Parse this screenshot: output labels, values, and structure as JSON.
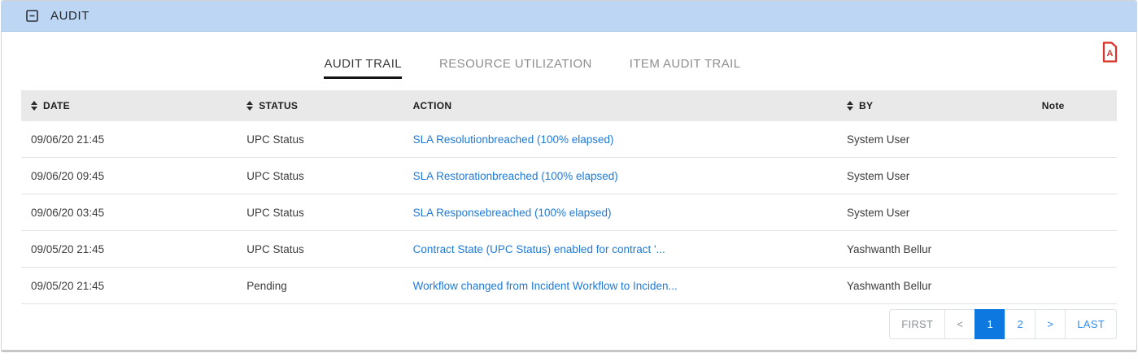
{
  "panel": {
    "title": "AUDIT"
  },
  "tabs": [
    {
      "label": "AUDIT TRAIL",
      "active": true
    },
    {
      "label": "RESOURCE UTILIZATION",
      "active": false
    },
    {
      "label": "ITEM AUDIT TRAIL",
      "active": false
    }
  ],
  "export": {
    "pdf_icon": "file-pdf-icon",
    "pdf_color": "#d9342b"
  },
  "table": {
    "columns": [
      {
        "label": "DATE",
        "sortable": true,
        "align": "left"
      },
      {
        "label": "STATUS",
        "sortable": true,
        "align": "left"
      },
      {
        "label": "ACTION",
        "sortable": false,
        "align": "left"
      },
      {
        "label": "BY",
        "sortable": true,
        "align": "left"
      },
      {
        "label": "Note",
        "sortable": false,
        "align": "center"
      }
    ],
    "rows": [
      {
        "date": "09/06/20 21:45",
        "status": "UPC Status",
        "action": "SLA Resolutionbreached (100% elapsed)",
        "by": "System User",
        "note": ""
      },
      {
        "date": "09/06/20 09:45",
        "status": "UPC Status",
        "action": "SLA Restorationbreached (100% elapsed)",
        "by": "System User",
        "note": ""
      },
      {
        "date": "09/06/20 03:45",
        "status": "UPC Status",
        "action": "SLA Responsebreached (100% elapsed)",
        "by": "System User",
        "note": ""
      },
      {
        "date": "09/05/20 21:45",
        "status": "UPC Status",
        "action": "Contract State (UPC Status) enabled for contract '...",
        "by": "Yashwanth Bellur",
        "note": ""
      },
      {
        "date": "09/05/20 21:45",
        "status": "Pending",
        "action": "Workflow changed from Incident Workflow to Inciden...",
        "by": "Yashwanth Bellur",
        "note": ""
      }
    ]
  },
  "pagination": {
    "items": [
      {
        "label": "FIRST",
        "state": "disabled"
      },
      {
        "label": "<",
        "state": "disabled"
      },
      {
        "label": "1",
        "state": "active"
      },
      {
        "label": "2",
        "state": "normal"
      },
      {
        "label": ">",
        "state": "normal"
      },
      {
        "label": "LAST",
        "state": "normal"
      }
    ]
  },
  "colors": {
    "header_bar": "#bcd6f3",
    "table_header_bg": "#e9e9e9",
    "action_link": "#1d7ad9",
    "pagination_active": "#0d78e0",
    "pagination_link": "#2e8df2",
    "pdf_red": "#d9342b"
  }
}
